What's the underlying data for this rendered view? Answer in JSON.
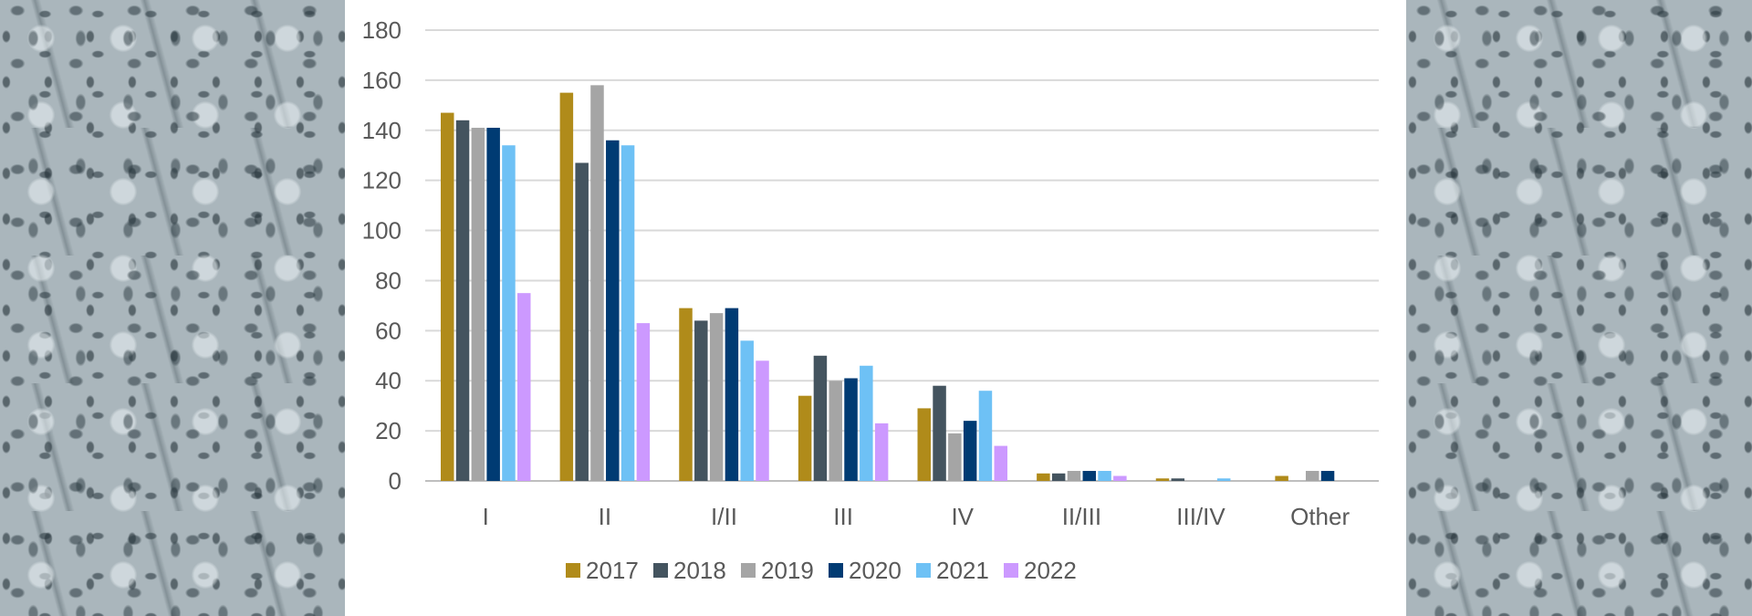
{
  "chart_data": {
    "type": "bar",
    "title": "",
    "xlabel": "",
    "ylabel": "",
    "categories": [
      "I",
      "II",
      "I/II",
      "III",
      "IV",
      "II/III",
      "III/IV",
      "Other"
    ],
    "ylim": [
      0,
      180
    ],
    "yticks": [
      0,
      20,
      40,
      60,
      80,
      100,
      120,
      140,
      160,
      180
    ],
    "grid": true,
    "legend_position": "bottom",
    "series": [
      {
        "name": "2017",
        "color": "#b08b1a",
        "values": [
          147,
          155,
          69,
          34,
          29,
          3,
          1,
          2
        ]
      },
      {
        "name": "2018",
        "color": "#44545f",
        "values": [
          144,
          127,
          64,
          50,
          38,
          3,
          1,
          0
        ]
      },
      {
        "name": "2019",
        "color": "#a5a5a5",
        "values": [
          141,
          158,
          67,
          40,
          19,
          4,
          0,
          4
        ]
      },
      {
        "name": "2020",
        "color": "#003b73",
        "values": [
          141,
          136,
          69,
          41,
          24,
          4,
          0,
          4
        ]
      },
      {
        "name": "2021",
        "color": "#6ec1f5",
        "values": [
          134,
          134,
          56,
          46,
          36,
          4,
          1,
          0
        ]
      },
      {
        "name": "2022",
        "color": "#cc99ff",
        "values": [
          75,
          63,
          48,
          23,
          14,
          2,
          0,
          0
        ]
      }
    ]
  }
}
